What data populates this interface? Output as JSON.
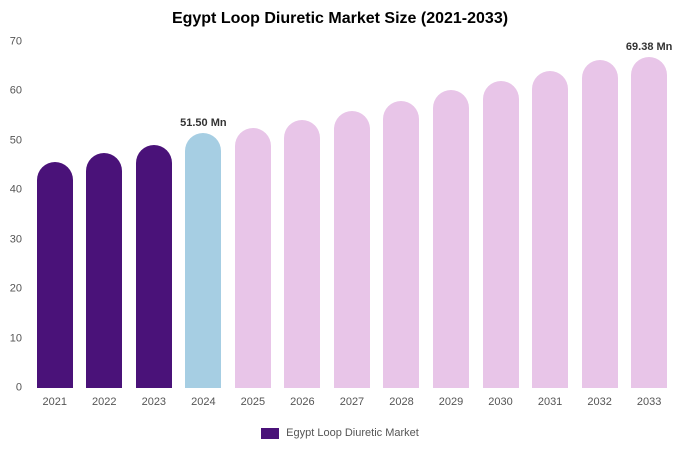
{
  "legend": {
    "label": "Egypt Loop Diuretic Market",
    "swatch_color": "#4a1279"
  },
  "chart_data": {
    "type": "bar",
    "title": "Egypt Loop Diuretic Market Size (2021-2033)",
    "categories": [
      "2021",
      "2022",
      "2023",
      "2024",
      "2025",
      "2026",
      "2027",
      "2028",
      "2029",
      "2030",
      "2031",
      "2032",
      "2033"
    ],
    "values": [
      45.8,
      47.5,
      49.2,
      51.5,
      52.7,
      54.3,
      56.1,
      58.0,
      60.2,
      62.1,
      64.2,
      66.4,
      69.38
    ],
    "unit": "Mn",
    "xlabel": "",
    "ylabel": "",
    "ylim": [
      0,
      70
    ],
    "yticks": [
      0,
      10,
      20,
      30,
      40,
      50,
      60,
      70
    ],
    "grid": false,
    "legend_position": "bottom",
    "colors": {
      "historical": "#4a1279",
      "current": "#a6cee3",
      "forecast": "#e8c5e8"
    },
    "bar_color_keys": [
      "historical",
      "historical",
      "historical",
      "current",
      "forecast",
      "forecast",
      "forecast",
      "forecast",
      "forecast",
      "forecast",
      "forecast",
      "forecast",
      "forecast"
    ],
    "annotations": [
      {
        "category": "2024",
        "text": "51.50 Mn"
      },
      {
        "category": "2033",
        "text": "69.38 Mn"
      }
    ]
  }
}
